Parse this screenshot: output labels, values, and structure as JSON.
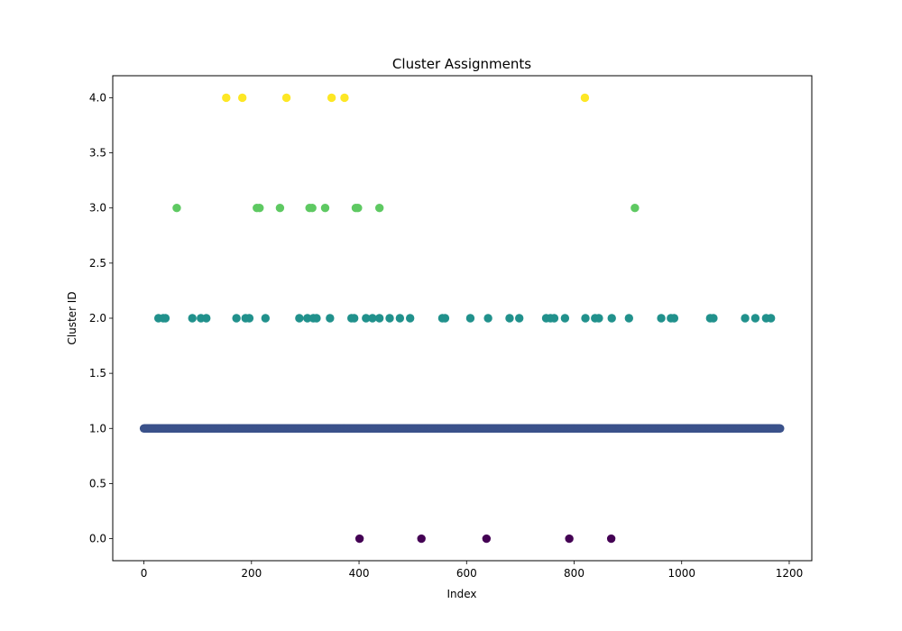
{
  "chart_data": {
    "type": "scatter",
    "title": "Cluster Assignments",
    "xlabel": "Index",
    "ylabel": "Cluster ID",
    "xlim": [
      -58,
      1242
    ],
    "ylim": [
      -0.2,
      4.2
    ],
    "grid": false,
    "x_ticks": [
      0,
      200,
      400,
      600,
      800,
      1000,
      1200
    ],
    "x_tick_labels": [
      "0",
      "200",
      "400",
      "600",
      "800",
      "1000",
      "1200"
    ],
    "y_ticks": [
      0.0,
      0.5,
      1.0,
      1.5,
      2.0,
      2.5,
      3.0,
      3.5,
      4.0
    ],
    "y_tick_labels": [
      "0.0",
      "0.5",
      "1.0",
      "1.5",
      "2.0",
      "2.5",
      "3.0",
      "3.5",
      "4.0"
    ],
    "cluster_colors": {
      "0": "#440154",
      "1": "#3b528b",
      "2": "#21918c",
      "3": "#5ec962",
      "4": "#fde725"
    },
    "cluster1_range": [
      0,
      1183
    ],
    "series": [
      {
        "cluster": 0,
        "x": [
          401,
          516,
          637,
          791,
          869
        ]
      },
      {
        "cluster": 2,
        "x": [
          27,
          36,
          40,
          90,
          106,
          116,
          172,
          189,
          196,
          226,
          289,
          304,
          315,
          321,
          346,
          386,
          391,
          413,
          425,
          438,
          457,
          476,
          495,
          555,
          560,
          607,
          640,
          680,
          698,
          748,
          756,
          763,
          783,
          821,
          839,
          846,
          870,
          902,
          962,
          980,
          986,
          1053,
          1059,
          1118,
          1137,
          1157,
          1166
        ]
      },
      {
        "cluster": 3,
        "x": [
          61,
          210,
          215,
          253,
          308,
          313,
          337,
          394,
          398,
          438,
          913
        ]
      },
      {
        "cluster": 4,
        "x": [
          153,
          183,
          265,
          349,
          373,
          820
        ]
      }
    ]
  }
}
